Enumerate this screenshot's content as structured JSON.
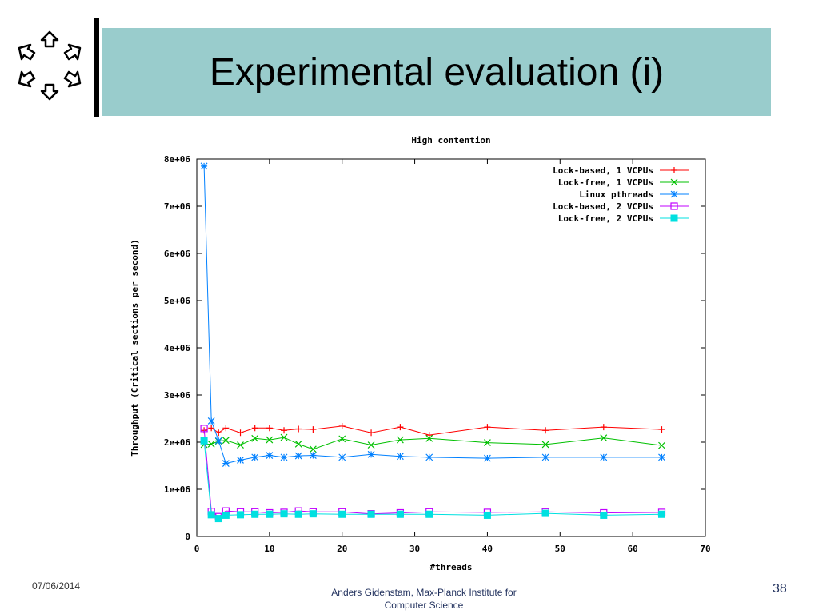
{
  "slide": {
    "title": "Experimental evaluation (i)",
    "accent_color": "#99cccc",
    "footer": {
      "date": "07/06/2014",
      "author_line1": "Anders Gidenstam, Max-Planck Institute for",
      "author_line2": "Computer Science",
      "page_number": "38"
    },
    "logo_icon": "hexagon-arrows-logo-icon"
  },
  "chart_data": {
    "type": "line",
    "title": "High contention",
    "xlabel": "#threads",
    "ylabel": "Throughput (Critical sections per second)",
    "xlim": [
      0,
      70
    ],
    "ylim": [
      0,
      8000000
    ],
    "xticks": [
      {
        "value": 0,
        "label": "0"
      },
      {
        "value": 10,
        "label": "10"
      },
      {
        "value": 20,
        "label": "20"
      },
      {
        "value": 30,
        "label": "30"
      },
      {
        "value": 40,
        "label": "40"
      },
      {
        "value": 50,
        "label": "50"
      },
      {
        "value": 60,
        "label": "60"
      },
      {
        "value": 70,
        "label": "70"
      }
    ],
    "yticks": [
      {
        "value": 0,
        "label": "0"
      },
      {
        "value": 1000000,
        "label": "1e+06"
      },
      {
        "value": 2000000,
        "label": "2e+06"
      },
      {
        "value": 3000000,
        "label": "3e+06"
      },
      {
        "value": 4000000,
        "label": "4e+06"
      },
      {
        "value": 5000000,
        "label": "5e+06"
      },
      {
        "value": 6000000,
        "label": "6e+06"
      },
      {
        "value": 7000000,
        "label": "7e+06"
      },
      {
        "value": 8000000,
        "label": "8e+06"
      }
    ],
    "grid": false,
    "legend_position": "top-right",
    "series": [
      {
        "name": "Lock-based, 1 VCPUs",
        "color": "#ff0000",
        "marker": "plus",
        "points": [
          [
            1,
            2250000
          ],
          [
            2,
            2300000
          ],
          [
            3,
            2200000
          ],
          [
            4,
            2300000
          ],
          [
            6,
            2200000
          ],
          [
            8,
            2300000
          ],
          [
            10,
            2300000
          ],
          [
            12,
            2250000
          ],
          [
            14,
            2280000
          ],
          [
            16,
            2270000
          ],
          [
            20,
            2340000
          ],
          [
            24,
            2200000
          ],
          [
            28,
            2320000
          ],
          [
            32,
            2150000
          ],
          [
            40,
            2320000
          ],
          [
            48,
            2250000
          ],
          [
            56,
            2320000
          ],
          [
            64,
            2270000
          ]
        ]
      },
      {
        "name": "Lock-free, 1 VCPUs",
        "color": "#00c000",
        "marker": "cross",
        "points": [
          [
            1,
            1950000
          ],
          [
            2,
            1960000
          ],
          [
            3,
            2020000
          ],
          [
            4,
            2040000
          ],
          [
            6,
            1940000
          ],
          [
            8,
            2080000
          ],
          [
            10,
            2050000
          ],
          [
            12,
            2100000
          ],
          [
            14,
            1960000
          ],
          [
            16,
            1850000
          ],
          [
            20,
            2070000
          ],
          [
            24,
            1940000
          ],
          [
            28,
            2050000
          ],
          [
            32,
            2080000
          ],
          [
            40,
            1990000
          ],
          [
            48,
            1950000
          ],
          [
            56,
            2090000
          ],
          [
            64,
            1930000
          ]
        ]
      },
      {
        "name": "Linux pthreads",
        "color": "#0080ff",
        "marker": "star",
        "points": [
          [
            1,
            7850000
          ],
          [
            2,
            2450000
          ],
          [
            3,
            2030000
          ],
          [
            4,
            1550000
          ],
          [
            6,
            1620000
          ],
          [
            8,
            1680000
          ],
          [
            10,
            1720000
          ],
          [
            12,
            1680000
          ],
          [
            14,
            1710000
          ],
          [
            16,
            1720000
          ],
          [
            20,
            1680000
          ],
          [
            24,
            1740000
          ],
          [
            28,
            1700000
          ],
          [
            32,
            1680000
          ],
          [
            40,
            1660000
          ],
          [
            48,
            1680000
          ],
          [
            56,
            1680000
          ],
          [
            64,
            1680000
          ]
        ]
      },
      {
        "name": "Lock-based, 2 VCPUs",
        "color": "#c000ff",
        "marker": "square-open",
        "points": [
          [
            1,
            2290000
          ],
          [
            2,
            530000
          ],
          [
            3,
            420000
          ],
          [
            4,
            540000
          ],
          [
            6,
            520000
          ],
          [
            8,
            520000
          ],
          [
            10,
            500000
          ],
          [
            12,
            510000
          ],
          [
            14,
            540000
          ],
          [
            16,
            520000
          ],
          [
            20,
            520000
          ],
          [
            24,
            480000
          ],
          [
            28,
            500000
          ],
          [
            32,
            520000
          ],
          [
            40,
            510000
          ],
          [
            48,
            520000
          ],
          [
            56,
            500000
          ],
          [
            64,
            510000
          ]
        ]
      },
      {
        "name": "Lock-free, 2 VCPUs",
        "color": "#00e0e0",
        "marker": "square-filled",
        "points": [
          [
            1,
            2030000
          ],
          [
            2,
            460000
          ],
          [
            3,
            380000
          ],
          [
            4,
            450000
          ],
          [
            6,
            460000
          ],
          [
            8,
            470000
          ],
          [
            10,
            470000
          ],
          [
            12,
            480000
          ],
          [
            14,
            470000
          ],
          [
            16,
            480000
          ],
          [
            20,
            470000
          ],
          [
            24,
            470000
          ],
          [
            28,
            470000
          ],
          [
            32,
            470000
          ],
          [
            40,
            450000
          ],
          [
            48,
            490000
          ],
          [
            56,
            450000
          ],
          [
            64,
            470000
          ]
        ]
      }
    ]
  }
}
